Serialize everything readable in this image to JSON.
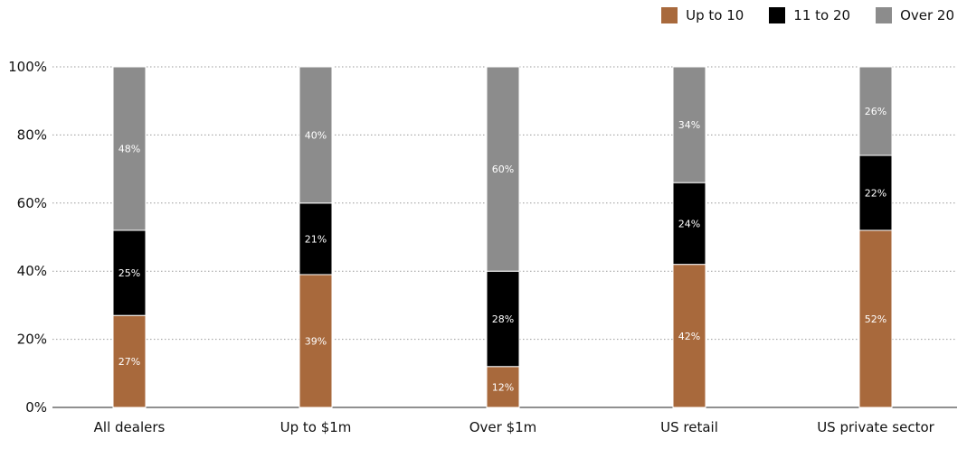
{
  "chart_data": {
    "type": "bar",
    "stacked": true,
    "categories": [
      "All dealers",
      "Up to $1m",
      "Over $1m",
      "US retail",
      "US private sector"
    ],
    "series": [
      {
        "name": "Up to 10",
        "color": "#a8693c",
        "values": [
          27,
          39,
          12,
          42,
          52
        ],
        "labels": [
          "27%",
          "39%",
          "12%",
          "42%",
          "52%"
        ]
      },
      {
        "name": "11 to 20",
        "color": "#000000",
        "values": [
          25,
          21,
          28,
          24,
          22
        ],
        "labels": [
          "25%",
          "21%",
          "28%",
          "24%",
          "22%"
        ]
      },
      {
        "name": "Over 20",
        "color": "#8c8c8c",
        "values": [
          48,
          40,
          60,
          34,
          26
        ],
        "labels": [
          "48%",
          "40%",
          "60%",
          "34%",
          "26%"
        ]
      }
    ],
    "ylim": [
      0,
      100
    ],
    "yticks": [
      0,
      20,
      40,
      60,
      80,
      100
    ],
    "ytick_labels": [
      "0%",
      "20%",
      "40%",
      "60%",
      "80%",
      "100%"
    ],
    "grid": true,
    "legend_position": "top-right"
  }
}
